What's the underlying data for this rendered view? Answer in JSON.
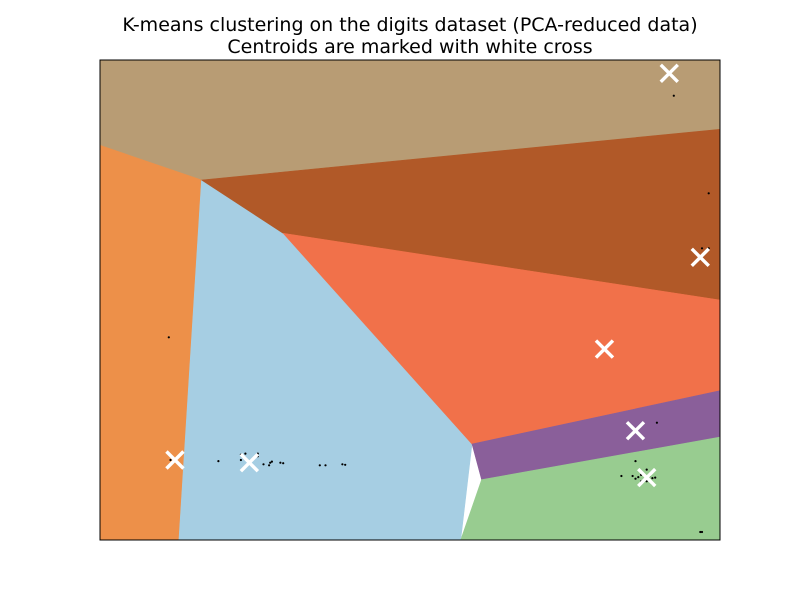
{
  "chart_data": {
    "type": "scatter",
    "title": "K-means clustering on the digits dataset (PCA-reduced data)",
    "subtitle": "Centroids are marked with white cross",
    "xlabel": "",
    "ylabel": "",
    "xticks": "none",
    "yticks": "none",
    "grid": false,
    "legend": "none",
    "xlim": [
      -0.5,
      10.5
    ],
    "ylim": [
      -0.5,
      8.5
    ],
    "regions": [
      {
        "name": "",
        "color": "#b89c74",
        "polygon": [
          [
            -0.5,
            8.5
          ],
          [
            10.5,
            8.5
          ],
          [
            10.5,
            7.2
          ],
          [
            1.3,
            6.25
          ],
          [
            -0.5,
            6.9
          ]
        ]
      },
      {
        "name": "",
        "color": "#ed9049",
        "polygon": [
          [
            -0.5,
            6.9
          ],
          [
            1.3,
            6.25
          ],
          [
            0.9,
            -0.5
          ],
          [
            -0.5,
            -0.5
          ]
        ]
      },
      {
        "name": "",
        "color": "#a6cee3",
        "polygon": [
          [
            1.3,
            6.25
          ],
          [
            2.75,
            5.25
          ],
          [
            6.1,
            1.3
          ],
          [
            5.9,
            -0.5
          ],
          [
            0.9,
            -0.5
          ]
        ]
      },
      {
        "name": "",
        "color": "#b15928",
        "polygon": [
          [
            1.3,
            6.25
          ],
          [
            10.5,
            7.2
          ],
          [
            10.5,
            4.0
          ],
          [
            2.75,
            5.25
          ]
        ]
      },
      {
        "name": "",
        "color": "#f1714a",
        "polygon": [
          [
            2.75,
            5.25
          ],
          [
            10.5,
            4.0
          ],
          [
            10.5,
            2.3
          ],
          [
            6.1,
            1.3
          ]
        ]
      },
      {
        "name": "",
        "color": "#8a5f9a",
        "polygon": [
          [
            6.1,
            1.3
          ],
          [
            10.5,
            2.3
          ],
          [
            10.5,
            1.43
          ],
          [
            6.27,
            0.63
          ]
        ]
      },
      {
        "name": "",
        "color": "#98cc90",
        "polygon": [
          [
            6.27,
            0.63
          ],
          [
            10.5,
            1.43
          ],
          [
            10.5,
            -0.5
          ],
          [
            5.9,
            -0.5
          ]
        ]
      }
    ],
    "centroids": {
      "x": [
        9.6,
        10.15,
        8.45,
        0.83,
        9.0,
        9.2,
        2.15
      ],
      "y": [
        8.25,
        4.8,
        3.08,
        1.0,
        1.55,
        0.67,
        0.95
      ]
    },
    "points": {
      "x": [
        9.68,
        10.3,
        10.18,
        10.3,
        0.72,
        0.75,
        0.83,
        1.6,
        2.0,
        2.5,
        2.52,
        2.55,
        2.7,
        2.75,
        2.3,
        2.0,
        2.08,
        2.3,
        2.4,
        3.4,
        3.5,
        3.8,
        3.85,
        9.38,
        8.75,
        8.95,
        9.0,
        9.05,
        9.1,
        9.15,
        9.2,
        9.3,
        9.25,
        9.35,
        9.1,
        9.2,
        9.0,
        10.15,
        10.18,
        9.3
      ],
      "y": [
        7.83,
        6.0,
        4.97,
        4.97,
        3.3,
        1.0,
        1.0,
        0.98,
        1.0,
        0.9,
        0.95,
        0.97,
        0.95,
        0.94,
        1.12,
        1.1,
        1.12,
        1.07,
        0.92,
        0.9,
        0.9,
        0.92,
        0.91,
        1.7,
        0.7,
        0.7,
        0.65,
        0.68,
        0.72,
        0.62,
        0.6,
        0.66,
        0.7,
        0.67,
        0.6,
        0.82,
        0.98,
        -0.35,
        -0.35,
        0.55
      ]
    }
  }
}
